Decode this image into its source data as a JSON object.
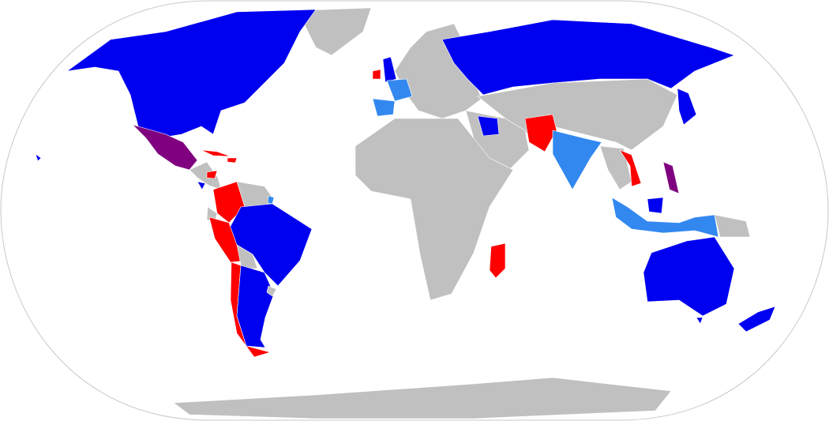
{
  "map": {
    "projection": "robinson",
    "colors": {
      "ocean": "#ffffff",
      "outline": "#c8c8c8",
      "none": "#c0c0c0",
      "blue": "#0000f0",
      "light_blue": "#3388f0",
      "red": "#ff0000",
      "purple": "#800080"
    }
  }
}
